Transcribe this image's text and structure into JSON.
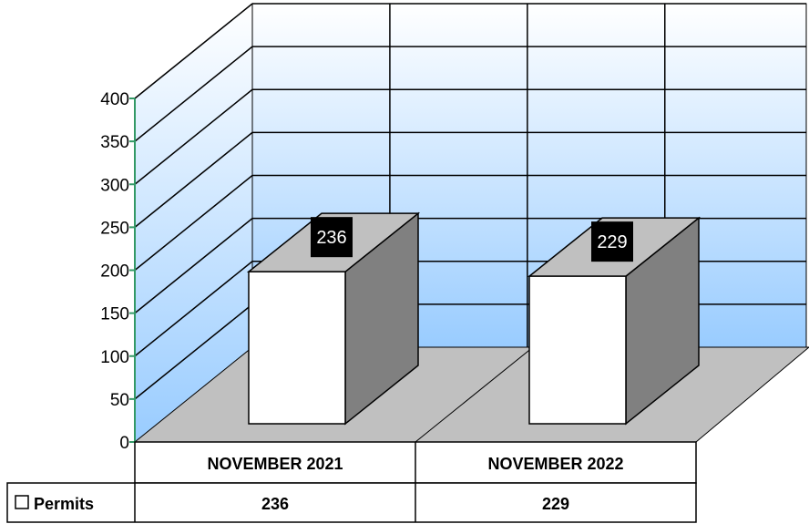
{
  "chart_data": {
    "type": "bar",
    "categories": [
      "NOVEMBER 2021",
      "NOVEMBER 2022"
    ],
    "series": [
      {
        "name": "Permits",
        "values": [
          236,
          229
        ]
      }
    ],
    "ylim": [
      0,
      400
    ],
    "y_ticks": [
      0,
      50,
      100,
      150,
      200,
      250,
      300,
      350,
      400
    ],
    "data_labels": [
      "236",
      "229"
    ],
    "data_table": true,
    "grid": true,
    "style": "3d",
    "colors": {
      "bar_front": "#ffffff",
      "bar_side": "#808080",
      "bar_top": "#c0c0c0",
      "floor": "#c0c0c0",
      "back_wall_top": "#ffffff",
      "back_wall_bottom": "#99ccff",
      "value_axis": "#339966",
      "label_bg": "#000000"
    }
  }
}
